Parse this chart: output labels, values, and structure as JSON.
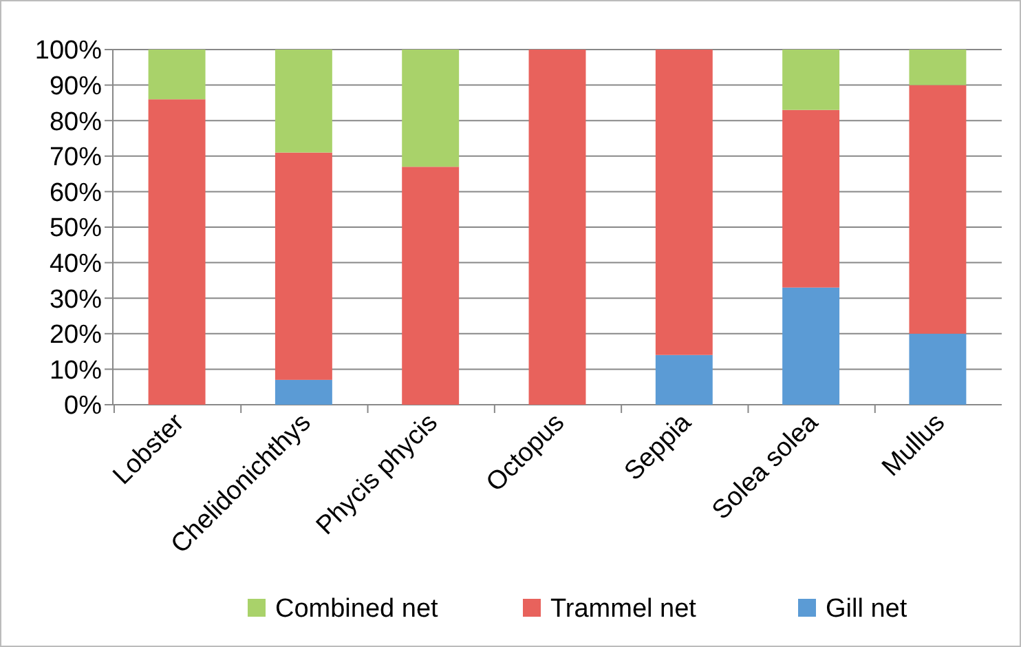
{
  "chart_data": {
    "type": "bar",
    "stacked": true,
    "categories": [
      "Lobster",
      "Chelidonichthys",
      "Phycis phycis",
      "Octopus",
      "Seppia",
      "Solea solea",
      "Mullus"
    ],
    "series": [
      {
        "name": "Gill net",
        "color": "#5b9bd5",
        "values": [
          0,
          7,
          0,
          0,
          14,
          33,
          20
        ]
      },
      {
        "name": "Trammel net",
        "color": "#e8625c",
        "values": [
          86,
          64,
          67,
          100,
          86,
          50,
          70
        ]
      },
      {
        "name": "Combined net",
        "color": "#a9d26a",
        "values": [
          14,
          29,
          33,
          0,
          0,
          17,
          10
        ]
      }
    ],
    "ylim": [
      0,
      100
    ],
    "yticks": [
      {
        "value": 0,
        "label": "0%"
      },
      {
        "value": 10,
        "label": "10%"
      },
      {
        "value": 20,
        "label": "20%"
      },
      {
        "value": 30,
        "label": "30%"
      },
      {
        "value": 40,
        "label": "40%"
      },
      {
        "value": 50,
        "label": "50%"
      },
      {
        "value": 60,
        "label": "60%"
      },
      {
        "value": 70,
        "label": "70%"
      },
      {
        "value": 80,
        "label": "80%"
      },
      {
        "value": 90,
        "label": "90%"
      },
      {
        "value": 100,
        "label": "100%"
      }
    ],
    "grid": "y",
    "legend": "bottom"
  }
}
